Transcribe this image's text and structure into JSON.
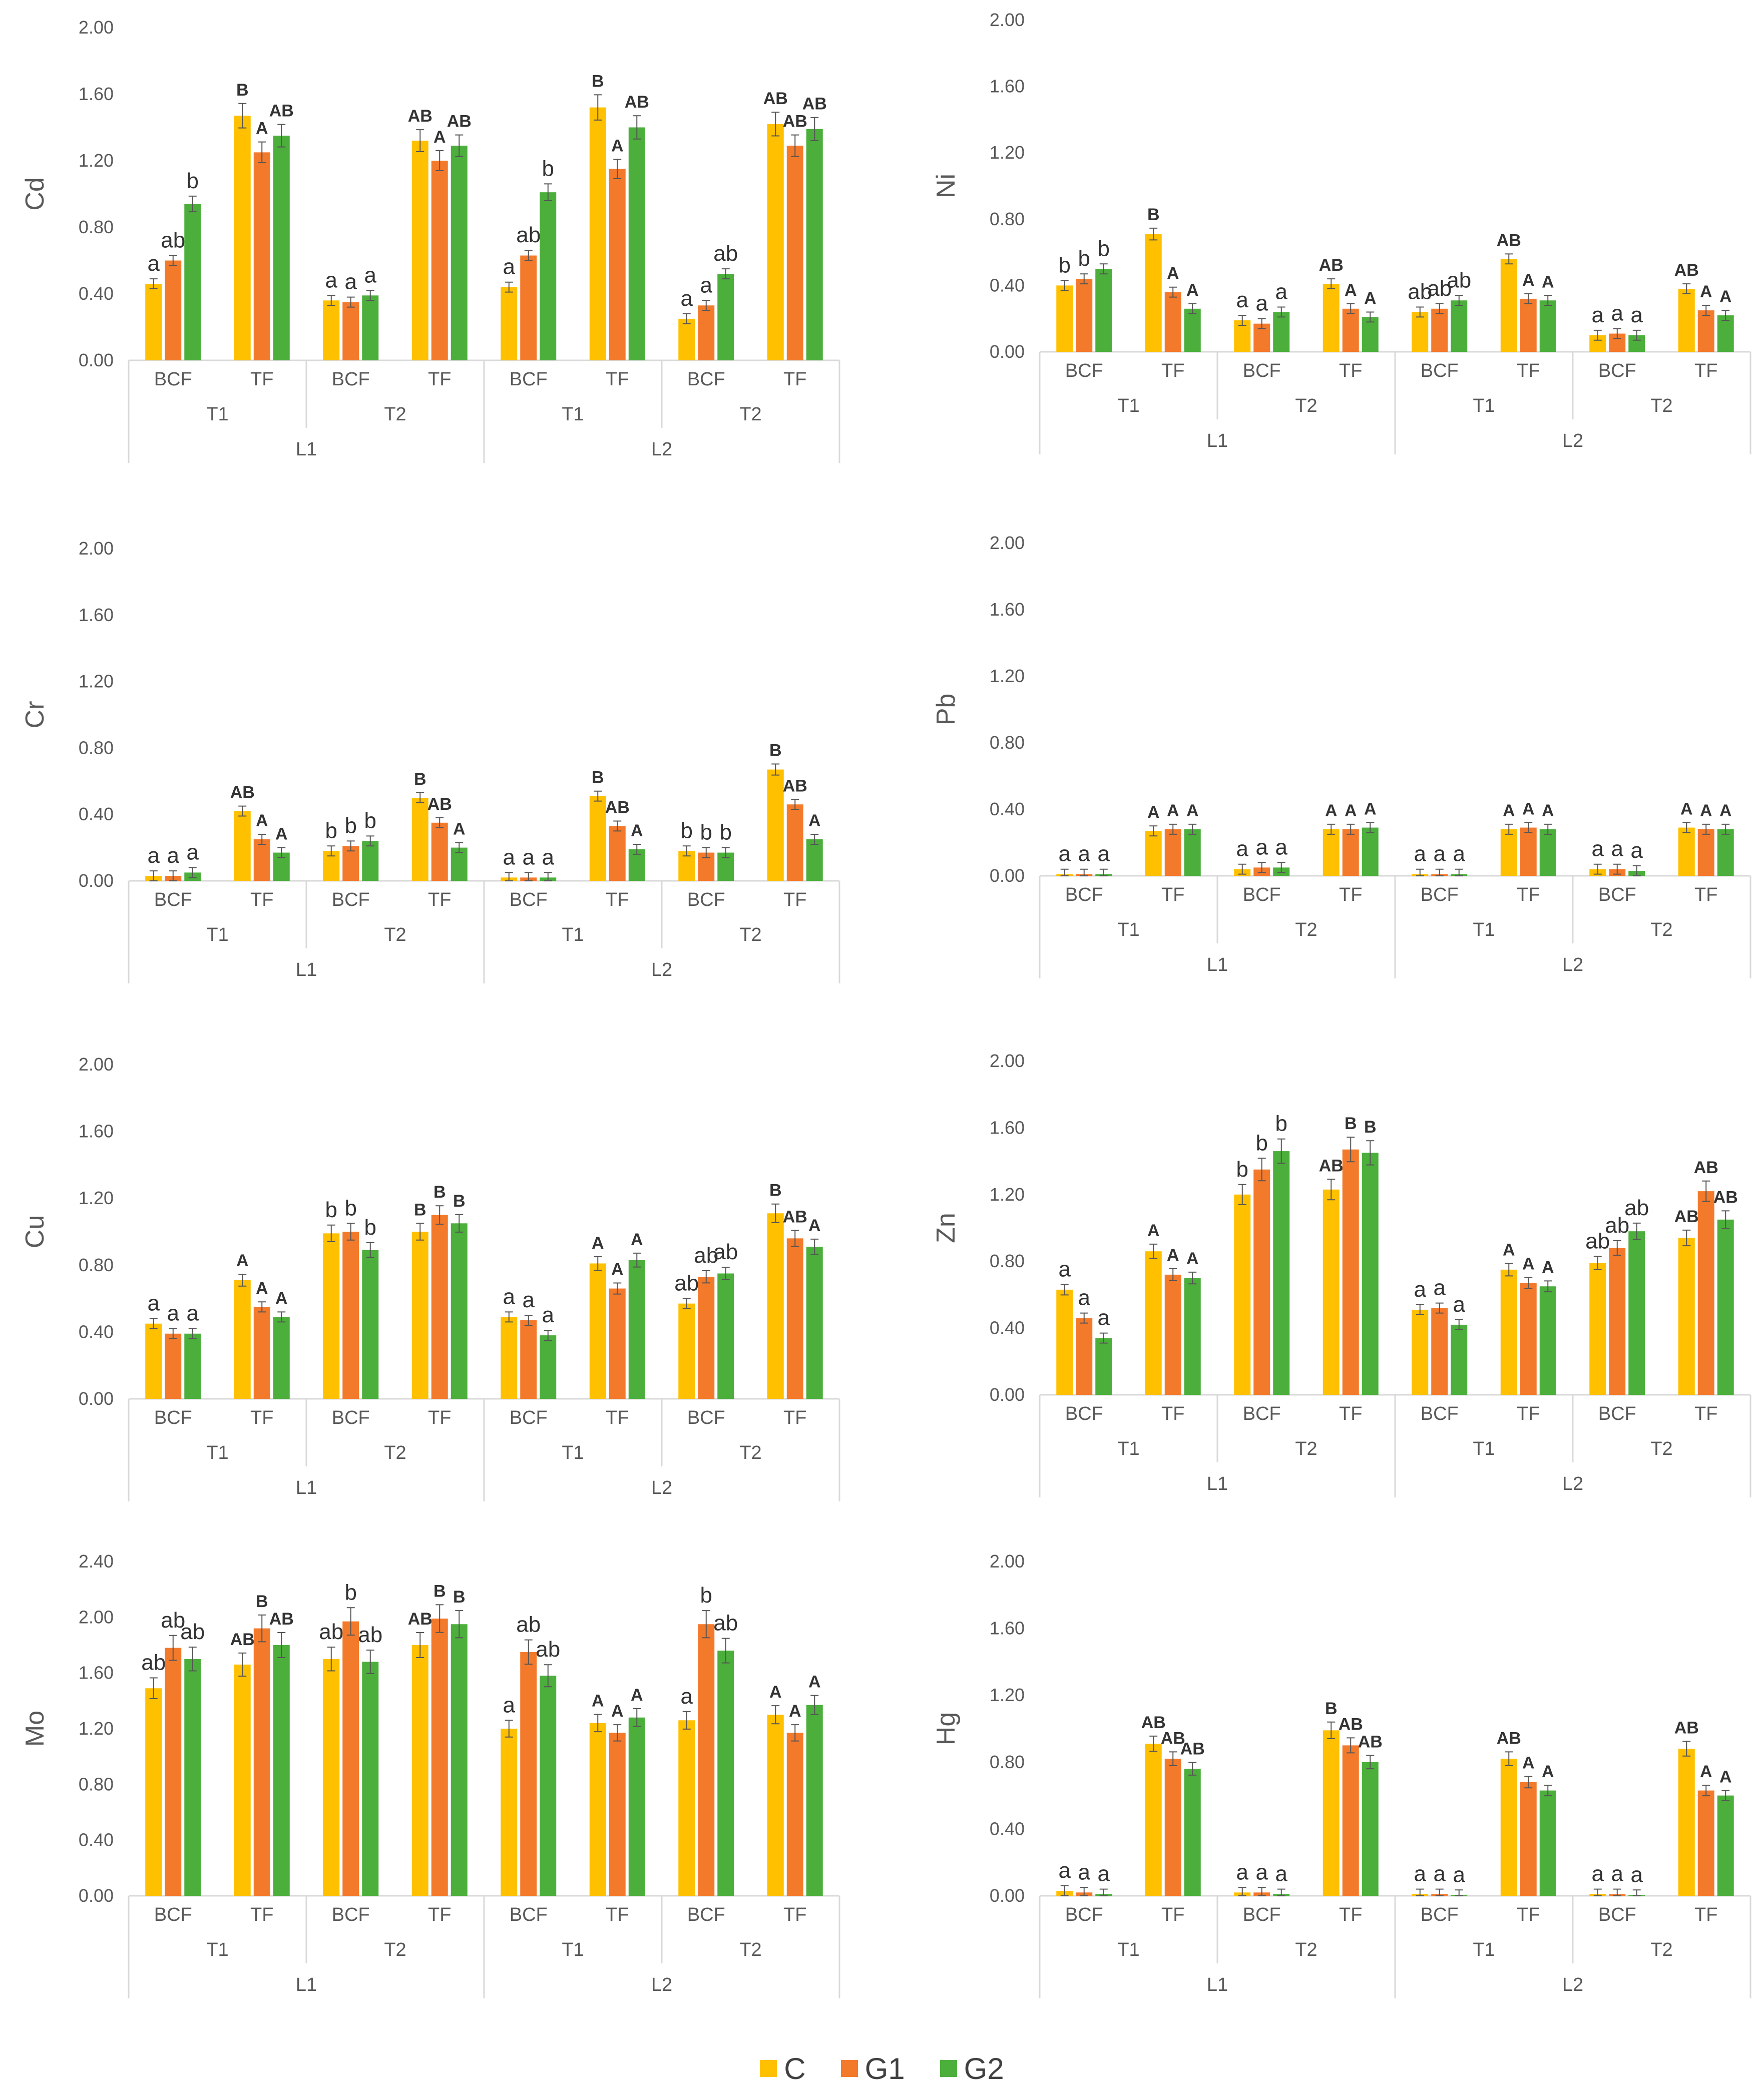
{
  "series_names": [
    "C",
    "G1",
    "G2"
  ],
  "series_colors": [
    "#FFC000",
    "#F47A2B",
    "#4CAF3C"
  ],
  "chart_data": [
    {
      "type": "bar",
      "ylabel": "Cd",
      "ylim": [
        0,
        2
      ],
      "yticks": [
        "0.00",
        "0.40",
        "0.80",
        "1.20",
        "1.60",
        "2.00"
      ],
      "categories": [
        "BCF",
        "TF",
        "BCF",
        "TF",
        "BCF",
        "TF",
        "BCF",
        "TF"
      ],
      "groups_mid": [
        "T1",
        "T2",
        "T1",
        "T2"
      ],
      "groups_top": [
        "L1",
        "L2"
      ],
      "series": [
        {
          "name": "C",
          "values": [
            0.46,
            1.47,
            0.36,
            1.32,
            0.44,
            1.52,
            0.25,
            1.42
          ]
        },
        {
          "name": "G1",
          "values": [
            0.6,
            1.25,
            0.35,
            1.2,
            0.63,
            1.15,
            0.33,
            1.29
          ]
        },
        {
          "name": "G2",
          "values": [
            0.94,
            1.35,
            0.39,
            1.29,
            1.01,
            1.4,
            0.52,
            1.39
          ]
        }
      ],
      "letters": [
        [
          "a",
          "ab",
          "b"
        ],
        [
          "B",
          "A",
          "AB"
        ],
        [
          "a",
          "a",
          "a"
        ],
        [
          "AB",
          "A",
          "AB"
        ],
        [
          "a",
          "ab",
          "b"
        ],
        [
          "B",
          "A",
          "AB"
        ],
        [
          "a",
          "a",
          "ab"
        ],
        [
          "AB",
          "AB",
          "AB"
        ]
      ]
    },
    {
      "type": "bar",
      "ylabel": "Ni",
      "ylim": [
        0,
        2
      ],
      "yticks": [
        "0.00",
        "0.40",
        "0.80",
        "1.20",
        "1.60",
        "2.00"
      ],
      "categories": [
        "BCF",
        "TF",
        "BCF",
        "TF",
        "BCF",
        "TF",
        "BCF",
        "TF"
      ],
      "groups_mid": [
        "T1",
        "T2",
        "T1",
        "T2"
      ],
      "groups_top": [
        "L1",
        "L2"
      ],
      "series": [
        {
          "name": "C",
          "values": [
            0.4,
            0.71,
            0.19,
            0.41,
            0.24,
            0.56,
            0.1,
            0.38
          ]
        },
        {
          "name": "G1",
          "values": [
            0.44,
            0.36,
            0.17,
            0.26,
            0.26,
            0.32,
            0.11,
            0.25
          ]
        },
        {
          "name": "G2",
          "values": [
            0.5,
            0.26,
            0.24,
            0.21,
            0.31,
            0.31,
            0.1,
            0.22
          ]
        }
      ],
      "letters": [
        [
          "b",
          "b",
          "b"
        ],
        [
          "B",
          "A",
          "A"
        ],
        [
          "a",
          "a",
          "a"
        ],
        [
          "AB",
          "A",
          "A"
        ],
        [
          "ab",
          "ab",
          "ab"
        ],
        [
          "AB",
          "A",
          "A"
        ],
        [
          "a",
          "a",
          "a"
        ],
        [
          "AB",
          "A",
          "A"
        ]
      ]
    },
    {
      "type": "bar",
      "ylabel": "Cr",
      "ylim": [
        0,
        2
      ],
      "yticks": [
        "0.00",
        "0.40",
        "0.80",
        "1.20",
        "1.60",
        "2.00"
      ],
      "categories": [
        "BCF",
        "TF",
        "BCF",
        "TF",
        "BCF",
        "TF",
        "BCF",
        "TF"
      ],
      "groups_mid": [
        "T1",
        "T2",
        "T1",
        "T2"
      ],
      "groups_top": [
        "L1",
        "L2"
      ],
      "series": [
        {
          "name": "C",
          "values": [
            0.03,
            0.42,
            0.18,
            0.5,
            0.02,
            0.51,
            0.18,
            0.67
          ]
        },
        {
          "name": "G1",
          "values": [
            0.03,
            0.25,
            0.21,
            0.35,
            0.02,
            0.33,
            0.17,
            0.46
          ]
        },
        {
          "name": "G2",
          "values": [
            0.05,
            0.17,
            0.24,
            0.2,
            0.02,
            0.19,
            0.17,
            0.25
          ]
        }
      ],
      "letters": [
        [
          "a",
          "a",
          "a"
        ],
        [
          "AB",
          "A",
          "A"
        ],
        [
          "b",
          "b",
          "b"
        ],
        [
          "B",
          "AB",
          "A"
        ],
        [
          "a",
          "a",
          "a"
        ],
        [
          "B",
          "AB",
          "A"
        ],
        [
          "b",
          "b",
          "b"
        ],
        [
          "B",
          "AB",
          "A"
        ]
      ]
    },
    {
      "type": "bar",
      "ylabel": "Pb",
      "ylim": [
        0,
        2
      ],
      "yticks": [
        "0.00",
        "0.40",
        "0.80",
        "1.20",
        "1.60",
        "2.00"
      ],
      "categories": [
        "BCF",
        "TF",
        "BCF",
        "TF",
        "BCF",
        "TF",
        "BCF",
        "TF"
      ],
      "groups_mid": [
        "T1",
        "T2",
        "T1",
        "T2"
      ],
      "groups_top": [
        "L1",
        "L2"
      ],
      "series": [
        {
          "name": "C",
          "values": [
            0.01,
            0.27,
            0.04,
            0.28,
            0.01,
            0.28,
            0.04,
            0.29
          ]
        },
        {
          "name": "G1",
          "values": [
            0.01,
            0.28,
            0.05,
            0.28,
            0.01,
            0.29,
            0.04,
            0.28
          ]
        },
        {
          "name": "G2",
          "values": [
            0.01,
            0.28,
            0.05,
            0.29,
            0.01,
            0.28,
            0.03,
            0.28
          ]
        }
      ],
      "letters": [
        [
          "a",
          "a",
          "a"
        ],
        [
          "A",
          "A",
          "A"
        ],
        [
          "a",
          "a",
          "a"
        ],
        [
          "A",
          "A",
          "A"
        ],
        [
          "a",
          "a",
          "a"
        ],
        [
          "A",
          "A",
          "A"
        ],
        [
          "a",
          "a",
          "a"
        ],
        [
          "A",
          "A",
          "A"
        ]
      ]
    },
    {
      "type": "bar",
      "ylabel": "Cu",
      "ylim": [
        0,
        2
      ],
      "yticks": [
        "0.00",
        "0.40",
        "0.80",
        "1.20",
        "1.60",
        "2.00"
      ],
      "categories": [
        "BCF",
        "TF",
        "BCF",
        "TF",
        "BCF",
        "TF",
        "BCF",
        "TF"
      ],
      "groups_mid": [
        "T1",
        "T2",
        "T1",
        "T2"
      ],
      "groups_top": [
        "L1",
        "L2"
      ],
      "series": [
        {
          "name": "C",
          "values": [
            0.45,
            0.71,
            0.99,
            1.0,
            0.49,
            0.81,
            0.57,
            1.11
          ]
        },
        {
          "name": "G1",
          "values": [
            0.39,
            0.55,
            1.0,
            1.1,
            0.47,
            0.66,
            0.73,
            0.96
          ]
        },
        {
          "name": "G2",
          "values": [
            0.39,
            0.49,
            0.89,
            1.05,
            0.38,
            0.83,
            0.75,
            0.91
          ]
        }
      ],
      "letters": [
        [
          "a",
          "a",
          "a"
        ],
        [
          "A",
          "A",
          "A"
        ],
        [
          "b",
          "b",
          "b"
        ],
        [
          "B",
          "B",
          "B"
        ],
        [
          "a",
          "a",
          "a"
        ],
        [
          "A",
          "A",
          "A"
        ],
        [
          "ab",
          "ab",
          "ab"
        ],
        [
          "B",
          "AB",
          "A"
        ]
      ]
    },
    {
      "type": "bar",
      "ylabel": "Zn",
      "ylim": [
        0,
        2
      ],
      "yticks": [
        "0.00",
        "0.40",
        "0.80",
        "1.20",
        "1.60",
        "2.00"
      ],
      "categories": [
        "BCF",
        "TF",
        "BCF",
        "TF",
        "BCF",
        "TF",
        "BCF",
        "TF"
      ],
      "groups_mid": [
        "T1",
        "T2",
        "T1",
        "T2"
      ],
      "groups_top": [
        "L1",
        "L2"
      ],
      "series": [
        {
          "name": "C",
          "values": [
            0.63,
            0.86,
            1.2,
            1.23,
            0.51,
            0.75,
            0.79,
            0.94
          ]
        },
        {
          "name": "G1",
          "values": [
            0.46,
            0.72,
            1.35,
            1.47,
            0.52,
            0.67,
            0.88,
            1.22
          ]
        },
        {
          "name": "G2",
          "values": [
            0.34,
            0.7,
            1.46,
            1.45,
            0.42,
            0.65,
            0.98,
            1.05
          ]
        }
      ],
      "letters": [
        [
          "a",
          "a",
          "a"
        ],
        [
          "A",
          "A",
          "A"
        ],
        [
          "b",
          "b",
          "b"
        ],
        [
          "AB",
          "B",
          "B"
        ],
        [
          "a",
          "a",
          "a"
        ],
        [
          "A",
          "A",
          "A"
        ],
        [
          "ab",
          "ab",
          "ab"
        ],
        [
          "AB",
          "AB",
          "AB"
        ]
      ]
    },
    {
      "type": "bar",
      "ylabel": "Mo",
      "ylim": [
        0,
        2.4
      ],
      "yticks": [
        "0.00",
        "0.40",
        "0.80",
        "1.20",
        "1.60",
        "2.00",
        "2.40"
      ],
      "categories": [
        "BCF",
        "TF",
        "BCF",
        "TF",
        "BCF",
        "TF",
        "BCF",
        "TF"
      ],
      "groups_mid": [
        "T1",
        "T2",
        "T1",
        "T2"
      ],
      "groups_top": [
        "L1",
        "L2"
      ],
      "series": [
        {
          "name": "C",
          "values": [
            1.49,
            1.66,
            1.7,
            1.8,
            1.2,
            1.24,
            1.26,
            1.3
          ]
        },
        {
          "name": "G1",
          "values": [
            1.78,
            1.92,
            1.97,
            1.99,
            1.75,
            1.17,
            1.95,
            1.17
          ]
        },
        {
          "name": "G2",
          "values": [
            1.7,
            1.8,
            1.68,
            1.95,
            1.58,
            1.28,
            1.76,
            1.37
          ]
        }
      ],
      "letters": [
        [
          "ab",
          "ab",
          "ab"
        ],
        [
          "AB",
          "B",
          "AB"
        ],
        [
          "ab",
          "b",
          "ab"
        ],
        [
          "AB",
          "B",
          "B"
        ],
        [
          "a",
          "ab",
          "ab"
        ],
        [
          "A",
          "A",
          "A"
        ],
        [
          "a",
          "b",
          "ab"
        ],
        [
          "A",
          "A",
          "A"
        ]
      ]
    },
    {
      "type": "bar",
      "ylabel": "Hg",
      "ylim": [
        0,
        2
      ],
      "yticks": [
        "0.00",
        "0.40",
        "0.80",
        "1.20",
        "1.60",
        "2.00"
      ],
      "categories": [
        "BCF",
        "TF",
        "BCF",
        "TF",
        "BCF",
        "TF",
        "BCF",
        "TF"
      ],
      "groups_mid": [
        "T1",
        "T2",
        "T1",
        "T2"
      ],
      "groups_top": [
        "L1",
        "L2"
      ],
      "series": [
        {
          "name": "C",
          "values": [
            0.03,
            0.91,
            0.02,
            0.99,
            0.01,
            0.82,
            0.01,
            0.88
          ]
        },
        {
          "name": "G1",
          "values": [
            0.02,
            0.82,
            0.02,
            0.9,
            0.01,
            0.68,
            0.01,
            0.63
          ]
        },
        {
          "name": "G2",
          "values": [
            0.01,
            0.76,
            0.01,
            0.8,
            0.005,
            0.63,
            0.005,
            0.6
          ]
        }
      ],
      "letters": [
        [
          "a",
          "a",
          "a"
        ],
        [
          "AB",
          "AB",
          "AB"
        ],
        [
          "a",
          "a",
          "a"
        ],
        [
          "B",
          "AB",
          "AB"
        ],
        [
          "a",
          "a",
          "a"
        ],
        [
          "AB",
          "A",
          "A"
        ],
        [
          "a",
          "a",
          "a"
        ],
        [
          "AB",
          "A",
          "A"
        ]
      ]
    }
  ]
}
